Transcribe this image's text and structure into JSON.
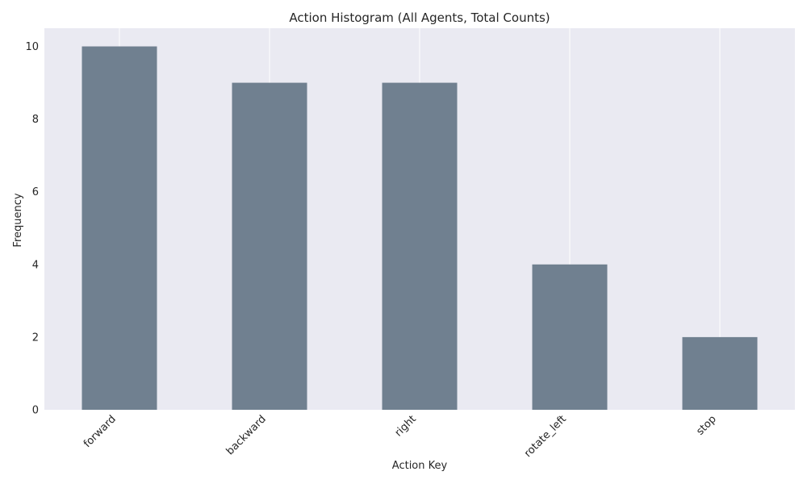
{
  "chart_data": {
    "type": "bar",
    "title": "Action Histogram (All Agents, Total Counts)",
    "xlabel": "Action Key",
    "ylabel": "Frequency",
    "categories": [
      "forward",
      "backward",
      "right",
      "rotate_left",
      "stop"
    ],
    "values": [
      10,
      9,
      9,
      4,
      2
    ],
    "ylim": [
      0,
      10.5
    ],
    "yticks": [
      0,
      2,
      4,
      6,
      8,
      10
    ],
    "grid": true,
    "bar_color": "#708090",
    "plot_background": "#eaeaf2",
    "grid_color": "#ffffff"
  }
}
